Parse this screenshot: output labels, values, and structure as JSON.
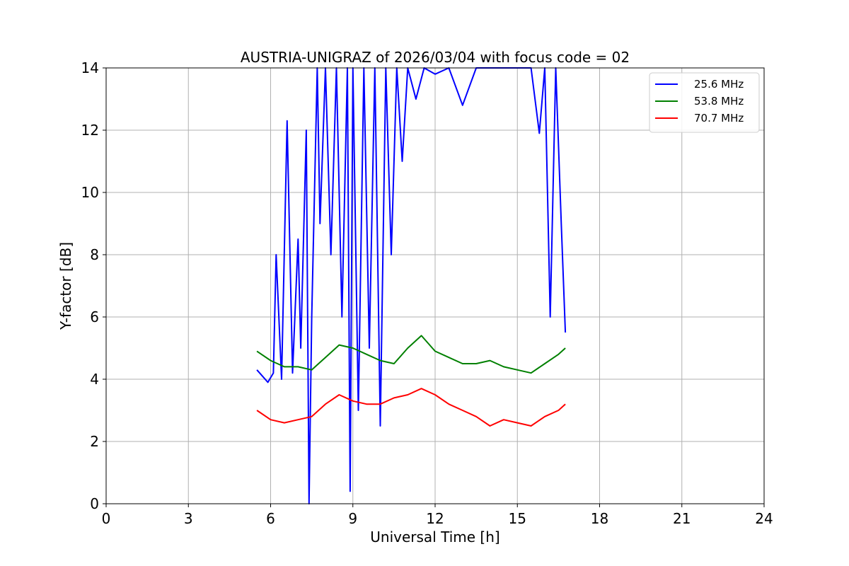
{
  "chart_data": {
    "type": "line",
    "title": "AUSTRIA-UNIGRAZ of 2026/03/04 with focus code = 02",
    "xlabel": "Universal Time [h]",
    "ylabel": "Y-factor [dB]",
    "xlim": [
      0,
      24
    ],
    "ylim": [
      0,
      14
    ],
    "x_ticks": [
      "0",
      "3",
      "6",
      "9",
      "12",
      "15",
      "18",
      "21",
      "24"
    ],
    "y_ticks": [
      "0",
      "2",
      "4",
      "6",
      "8",
      "10",
      "12",
      "14"
    ],
    "grid": true,
    "legend_position": "top-right",
    "series": [
      {
        "name": "25.6 MHz",
        "color": "#0000ff",
        "x": [
          5.5,
          5.7,
          5.9,
          6.1,
          6.2,
          6.4,
          6.6,
          6.8,
          7.0,
          7.1,
          7.3,
          7.4,
          7.5,
          7.7,
          7.8,
          8.0,
          8.2,
          8.4,
          8.6,
          8.8,
          8.9,
          9.0,
          9.2,
          9.4,
          9.6,
          9.8,
          10.0,
          10.2,
          10.4,
          10.6,
          10.8,
          11.0,
          11.3,
          11.6,
          12.0,
          12.5,
          13.0,
          13.5,
          14.0,
          14.5,
          15.0,
          15.5,
          15.8,
          16.0,
          16.2,
          16.4,
          16.6,
          16.75
        ],
        "y": [
          4.3,
          4.1,
          3.9,
          4.2,
          8.0,
          4.0,
          12.3,
          4.2,
          8.5,
          5.0,
          12.0,
          0.0,
          6.0,
          14.0,
          9.0,
          14.0,
          8.0,
          14.0,
          6.0,
          14.0,
          0.4,
          14.0,
          3.0,
          14.0,
          5.0,
          14.0,
          2.5,
          14.0,
          8.0,
          14.0,
          11.0,
          14.0,
          13.0,
          14.0,
          13.8,
          14.0,
          12.8,
          14.0,
          14.0,
          14.0,
          14.0,
          14.0,
          11.9,
          14.0,
          6.0,
          14.0,
          9.0,
          5.5
        ]
      },
      {
        "name": "53.8 MHz",
        "color": "#008000",
        "x": [
          5.5,
          6.0,
          6.5,
          7.0,
          7.5,
          8.0,
          8.5,
          9.0,
          9.5,
          10.0,
          10.5,
          11.0,
          11.5,
          12.0,
          12.5,
          13.0,
          13.5,
          14.0,
          14.5,
          15.0,
          15.5,
          16.0,
          16.5,
          16.75
        ],
        "y": [
          4.9,
          4.6,
          4.4,
          4.4,
          4.3,
          4.7,
          5.1,
          5.0,
          4.8,
          4.6,
          4.5,
          5.0,
          5.4,
          4.9,
          4.7,
          4.5,
          4.5,
          4.6,
          4.4,
          4.3,
          4.2,
          4.5,
          4.8,
          5.0
        ]
      },
      {
        "name": "70.7 MHz",
        "color": "#ff0000",
        "x": [
          5.5,
          6.0,
          6.5,
          7.0,
          7.5,
          8.0,
          8.5,
          9.0,
          9.5,
          10.0,
          10.5,
          11.0,
          11.5,
          12.0,
          12.5,
          13.0,
          13.5,
          14.0,
          14.5,
          15.0,
          15.5,
          16.0,
          16.5,
          16.75
        ],
        "y": [
          3.0,
          2.7,
          2.6,
          2.7,
          2.8,
          3.2,
          3.5,
          3.3,
          3.2,
          3.2,
          3.4,
          3.5,
          3.7,
          3.5,
          3.2,
          3.0,
          2.8,
          2.5,
          2.7,
          2.6,
          2.5,
          2.8,
          3.0,
          3.2
        ]
      }
    ]
  }
}
